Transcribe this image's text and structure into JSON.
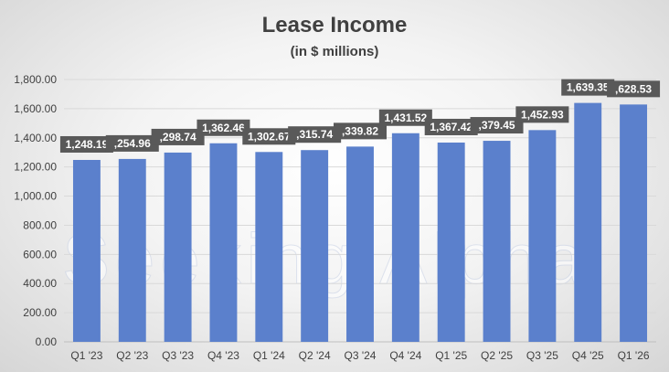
{
  "chart_data": {
    "type": "bar",
    "title": "Lease Income",
    "subtitle": "(in $ millions)",
    "categories": [
      "Q1 '23",
      "Q2 '23",
      "Q3 '23",
      "Q4 '23",
      "Q1 '24",
      "Q2 '24",
      "Q3 '24",
      "Q4 '24",
      "Q1 '25",
      "Q2 '25",
      "Q3 '25",
      "Q4 '25",
      "Q1 '26"
    ],
    "values": [
      1248.19,
      1254.96,
      1298.74,
      1362.46,
      1302.67,
      1315.74,
      1339.82,
      1431.52,
      1367.42,
      1379.45,
      1452.93,
      1639.35,
      1628.53
    ],
    "data_labels": [
      "1,248.19",
      ",254.96",
      ",298.74",
      "1,362.46",
      "1,302.67",
      ",315.74",
      ",339.82",
      "1,431.52",
      "1,367.42",
      ",379.45",
      "1,452.93",
      "1,639.35",
      ",628.53"
    ],
    "ylim": [
      0,
      1800
    ],
    "yticks": [
      "0.00",
      "200.00",
      "400.00",
      "600.00",
      "800.00",
      "1,000.00",
      "1,200.00",
      "1,400.00",
      "1,600.00",
      "1,800.00"
    ],
    "xlabel": "",
    "ylabel": "",
    "grid": true,
    "legend": "none",
    "bar_color": "#5B80CC",
    "label_bg_color": "#595959"
  },
  "watermark": "Seeking Alpha"
}
